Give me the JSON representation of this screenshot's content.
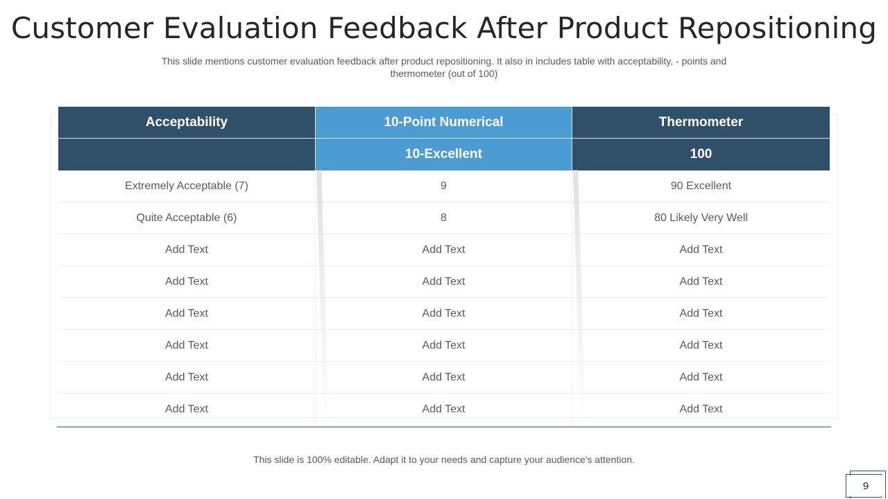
{
  "slide": {
    "title": "Customer Evaluation Feedback After Product Repositioning",
    "subtitle": "This slide mentions customer evaluation feedback after product repositioning. It also in includes table with acceptability, - points and thermometer (out of 100)",
    "footer": "This slide is 100% editable. Adapt it to your needs and capture your audience's attention.",
    "page_number": "9"
  },
  "table": {
    "headers": [
      "Acceptability",
      "10-Point Numerical",
      "Thermometer"
    ],
    "subheaders": [
      "",
      "10-Excellent",
      "100"
    ],
    "rows": [
      [
        "Extremely Acceptable (7)",
        "9",
        "90 Excellent"
      ],
      [
        "Quite Acceptable (6)",
        "8",
        "80 Likely Very Well"
      ],
      [
        "Add Text",
        "Add Text",
        "Add Text"
      ],
      [
        "Add Text",
        "Add Text",
        "Add Text"
      ],
      [
        "Add Text",
        "Add Text",
        "Add Text"
      ],
      [
        "Add Text",
        "Add Text",
        "Add Text"
      ],
      [
        "Add Text",
        "Add Text",
        "Add Text"
      ],
      [
        "Add Text",
        "Add Text",
        "Add Text"
      ]
    ]
  },
  "colors": {
    "header_dark": "#30506a",
    "header_blue": "#4d9bd3",
    "accent_line": "#8da4b8"
  }
}
